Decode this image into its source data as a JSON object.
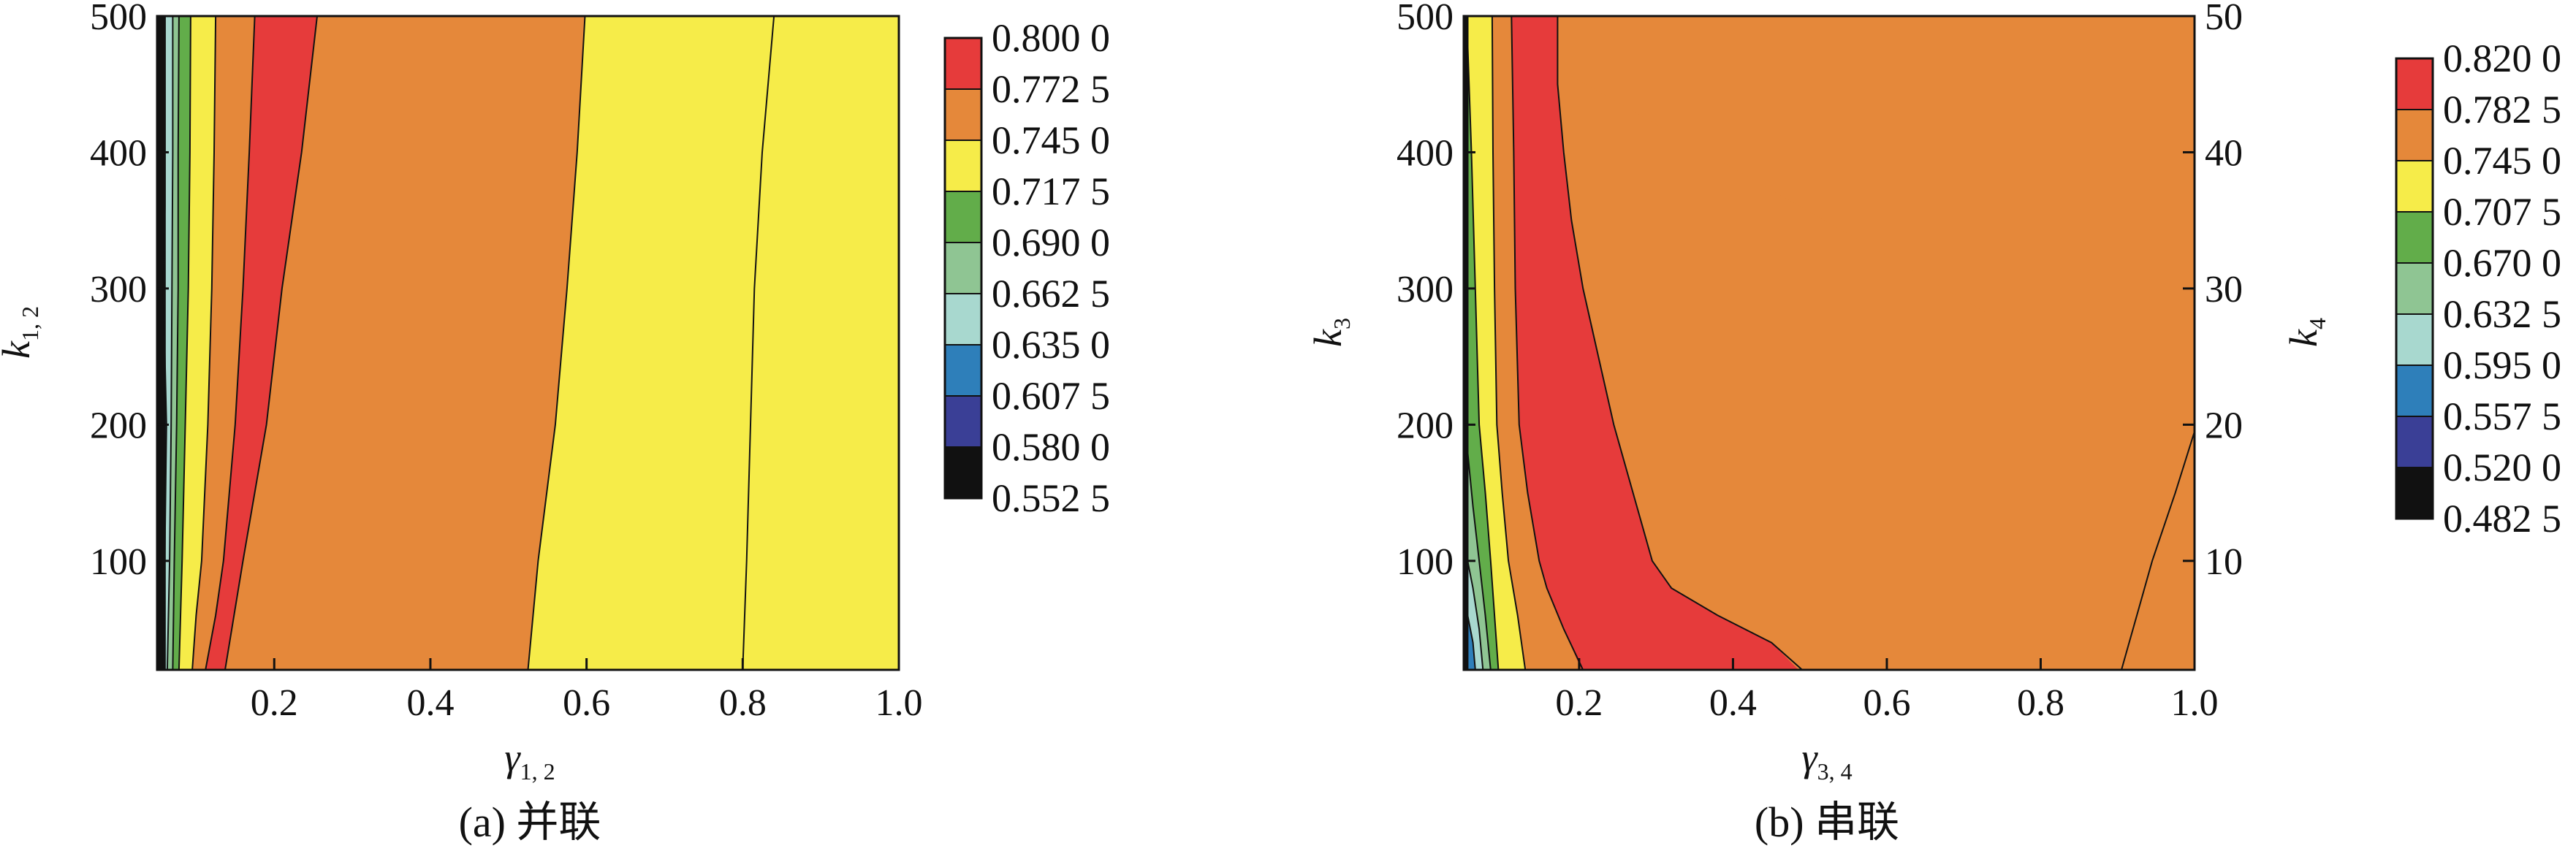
{
  "palette": [
    "#111111",
    "#3a3f96",
    "#2e7fba",
    "#a8d8cf",
    "#8fc593",
    "#62ad4a",
    "#f6ec49",
    "#e5883a",
    "#e63b3b"
  ],
  "chart_data": [
    {
      "type": "contour",
      "panel_caption": "(a) 并联",
      "xlabel": "γ",
      "xlabel_sub": "1, 2",
      "ylabel": "k",
      "ylabel_sub": "1, 2",
      "xlim": [
        0.05,
        1.0
      ],
      "ylim": [
        20,
        500
      ],
      "xticks": [
        0.2,
        0.4,
        0.6,
        0.8,
        1.0
      ],
      "xtick_labels": [
        "0.2",
        "0.4",
        "0.6",
        "0.8",
        "1.0"
      ],
      "yticks": [
        100,
        200,
        300,
        400,
        500
      ],
      "ytick_labels": [
        "100",
        "200",
        "300",
        "400",
        "500"
      ],
      "colorbar": {
        "levels": [
          "0.800 0",
          "0.772 5",
          "0.745 0",
          "0.717 5",
          "0.690 0",
          "0.662 5",
          "0.635 0",
          "0.607 5",
          "0.580 0",
          "0.552 5"
        ]
      },
      "contours": [
        {
          "level": 0.5525,
          "color_index": 0,
          "x_at_y": [
            [
              20,
              0.06
            ],
            [
              500,
              0.06
            ]
          ]
        },
        {
          "level": 0.58,
          "color_index": 1,
          "x_at_y": [
            [
              20,
              0.06
            ],
            [
              500,
              0.06
            ]
          ]
        },
        {
          "level": 0.6075,
          "color_index": 2,
          "x_at_y": [
            [
              20,
              0.058
            ],
            [
              200,
              0.062
            ],
            [
              300,
              0.058
            ],
            [
              360,
              0.06
            ],
            [
              400,
              0.06
            ],
            [
              500,
              0.06
            ]
          ]
        },
        {
          "level": 0.635,
          "color_index": 3,
          "x_at_y": [
            [
              20,
              0.063
            ],
            [
              100,
              0.066
            ],
            [
              200,
              0.068
            ],
            [
              300,
              0.069
            ],
            [
              400,
              0.07
            ],
            [
              500,
              0.07
            ]
          ]
        },
        {
          "level": 0.6625,
          "color_index": 4,
          "x_at_y": [
            [
              20,
              0.07
            ],
            [
              100,
              0.072
            ],
            [
              200,
              0.075
            ],
            [
              300,
              0.077
            ],
            [
              400,
              0.077
            ],
            [
              500,
              0.078
            ]
          ]
        },
        {
          "level": 0.69,
          "color_index": 5,
          "x_at_y": [
            [
              20,
              0.078
            ],
            [
              100,
              0.082
            ],
            [
              200,
              0.086
            ],
            [
              300,
              0.09
            ],
            [
              400,
              0.092
            ],
            [
              500,
              0.093
            ]
          ]
        },
        {
          "level": 0.7175,
          "color_index": 6,
          "x_at_y": [
            [
              20,
              0.095
            ],
            [
              60,
              0.1
            ],
            [
              100,
              0.107
            ],
            [
              200,
              0.115
            ],
            [
              300,
              0.12
            ],
            [
              400,
              0.123
            ],
            [
              500,
              0.125
            ]
          ]
        },
        {
          "level": 0.745,
          "color_index": 7,
          "x_at_y": [
            [
              20,
              0.112
            ],
            [
              60,
              0.125
            ],
            [
              100,
              0.135
            ],
            [
              200,
              0.15
            ],
            [
              300,
              0.16
            ],
            [
              400,
              0.168
            ],
            [
              500,
              0.175
            ]
          ]
        },
        {
          "level": 0.7725,
          "color_index": 8,
          "x_at_y": [
            [
              20,
              0.137
            ],
            [
              100,
              0.16
            ],
            [
              200,
              0.19
            ],
            [
              300,
              0.21
            ],
            [
              400,
              0.235
            ],
            [
              500,
              0.255
            ]
          ]
        },
        {
          "level": 0.7725,
          "color_index": 7,
          "x_at_y": [
            [
              20,
              0.525
            ],
            [
              100,
              0.538
            ],
            [
              200,
              0.56
            ],
            [
              300,
              0.575
            ],
            [
              400,
              0.588
            ],
            [
              500,
              0.598
            ]
          ]
        },
        {
          "level": 0.745,
          "color_index": 6,
          "x_at_y": [
            [
              20,
              0.8
            ],
            [
              100,
              0.805
            ],
            [
              200,
              0.81
            ],
            [
              300,
              0.815
            ],
            [
              400,
              0.825
            ],
            [
              500,
              0.84
            ]
          ]
        }
      ]
    },
    {
      "type": "contour",
      "panel_caption": "(b) 串联",
      "xlabel": "γ",
      "xlabel_sub": "3, 4",
      "ylabel": "k",
      "ylabel_sub": "3",
      "y2label": "k",
      "y2label_sub": "4",
      "xlim": [
        0.05,
        1.0
      ],
      "ylim": [
        20,
        500
      ],
      "y2lim": [
        2,
        50
      ],
      "xticks": [
        0.2,
        0.4,
        0.6,
        0.8,
        1.0
      ],
      "xtick_labels": [
        "0.2",
        "0.4",
        "0.6",
        "0.8",
        "1.0"
      ],
      "yticks": [
        100,
        200,
        300,
        400,
        500
      ],
      "ytick_labels": [
        "100",
        "200",
        "300",
        "400",
        "500"
      ],
      "y2ticks": [
        10,
        20,
        30,
        40,
        50
      ],
      "y2tick_labels": [
        "10",
        "20",
        "30",
        "40",
        "50"
      ],
      "colorbar": {
        "levels": [
          "0.820 0",
          "0.782 5",
          "0.745 0",
          "0.707 5",
          "0.670 0",
          "0.632 5",
          "0.595 0",
          "0.557 5",
          "0.520 0",
          "0.482 5"
        ]
      },
      "contours": [
        {
          "level": 0.4825,
          "color_index": 0,
          "x_at_y": [
            [
              20,
              0.055
            ],
            [
              500,
              0.055
            ]
          ]
        },
        {
          "level": 0.52,
          "color_index": 1,
          "x_at_y": [
            [
              20,
              0.055
            ],
            [
              500,
              0.055
            ]
          ]
        },
        {
          "level": 0.5575,
          "color_index": 2,
          "x_at_y": [
            [
              20,
              0.065
            ],
            [
              40,
              0.062
            ],
            [
              60,
              0.055
            ],
            [
              500,
              0.055
            ]
          ]
        },
        {
          "level": 0.595,
          "color_index": 3,
          "x_at_y": [
            [
              20,
              0.075
            ],
            [
              50,
              0.07
            ],
            [
              80,
              0.062
            ],
            [
              100,
              0.055
            ],
            [
              500,
              0.055
            ]
          ]
        },
        {
          "level": 0.6325,
          "color_index": 4,
          "x_at_y": [
            [
              20,
              0.085
            ],
            [
              60,
              0.078
            ],
            [
              100,
              0.07
            ],
            [
              140,
              0.062
            ],
            [
              180,
              0.055
            ],
            [
              500,
              0.055
            ]
          ]
        },
        {
          "level": 0.67,
          "color_index": 5,
          "x_at_y": [
            [
              20,
              0.095
            ],
            [
              60,
              0.09
            ],
            [
              100,
              0.085
            ],
            [
              150,
              0.078
            ],
            [
              200,
              0.07
            ],
            [
              300,
              0.065
            ],
            [
              400,
              0.06
            ],
            [
              480,
              0.055
            ],
            [
              500,
              0.055
            ]
          ]
        },
        {
          "level": 0.7075,
          "color_index": 6,
          "x_at_y": [
            [
              20,
              0.13
            ],
            [
              60,
              0.12
            ],
            [
              100,
              0.108
            ],
            [
              150,
              0.1
            ],
            [
              200,
              0.093
            ],
            [
              300,
              0.09
            ],
            [
              400,
              0.088
            ],
            [
              500,
              0.087
            ]
          ]
        },
        {
          "level": 0.745,
          "color_index": 7,
          "x_at_y": [
            [
              20,
              0.205
            ],
            [
              50,
              0.18
            ],
            [
              80,
              0.158
            ],
            [
              100,
              0.148
            ],
            [
              150,
              0.133
            ],
            [
              200,
              0.122
            ],
            [
              300,
              0.117
            ],
            [
              400,
              0.115
            ],
            [
              500,
              0.112
            ]
          ]
        },
        {
          "level": 0.7825,
          "color_index": 8,
          "x_at_y": [
            [
              20,
              0.49
            ],
            [
              40,
              0.45
            ],
            [
              60,
              0.38
            ],
            [
              80,
              0.32
            ],
            [
              100,
              0.295
            ],
            [
              150,
              0.27
            ],
            [
              200,
              0.245
            ],
            [
              250,
              0.225
            ],
            [
              300,
              0.205
            ],
            [
              350,
              0.19
            ],
            [
              400,
              0.18
            ],
            [
              450,
              0.172
            ],
            [
              500,
              0.172
            ]
          ]
        },
        {
          "level": 0.7825,
          "color_index": 7,
          "x_at_y": [
            [
              20,
              0.905
            ],
            [
              60,
              0.925
            ],
            [
              100,
              0.945
            ],
            [
              150,
              0.975
            ],
            [
              195,
              1.0
            ]
          ]
        }
      ]
    }
  ]
}
